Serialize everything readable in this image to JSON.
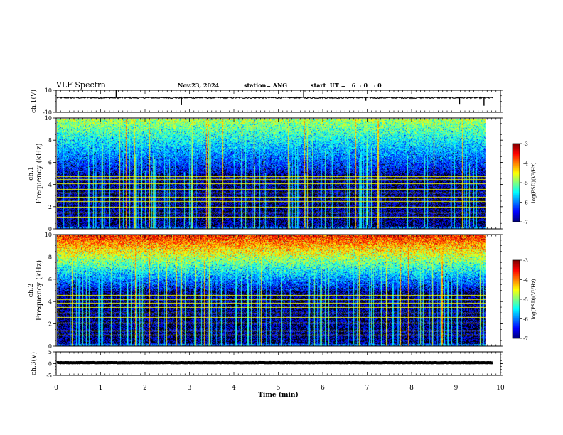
{
  "header": {
    "title": "VLF Spectra",
    "date": "Nov.23, 2024",
    "station": "station= ANG",
    "start_ut": "start  UT =   6  : 0   : 0"
  },
  "chart_data": [
    {
      "type": "line",
      "panel": "ch1-waveform",
      "ylabel": "ch.1(V)",
      "ylim": [
        -10,
        10
      ],
      "y_ticks": [
        "10",
        "-10"
      ],
      "baseline": 3.2,
      "noise_amplitude": 0.6,
      "spikes": [
        {
          "t": 1.35,
          "v": 10
        },
        {
          "t": 2.82,
          "v": -3.5
        },
        {
          "t": 5.57,
          "v": 10
        },
        {
          "t": 6.97,
          "v": 0.5
        },
        {
          "t": 9.08,
          "v": -3
        },
        {
          "t": 9.63,
          "v": -4
        }
      ]
    },
    {
      "type": "heatmap",
      "panel": "ch1-spectrogram",
      "ylabel": "ch.1 Frequency (kHz)",
      "ylim": [
        0,
        10
      ],
      "y_ticks": [
        "0",
        "2",
        "4",
        "6",
        "8",
        "10"
      ],
      "colorbar": {
        "label": "log(PSD)(V²/Hz)",
        "range": [
          -7,
          -3
        ],
        "ticks": [
          "-3",
          "-4",
          "-5",
          "-6",
          "-7"
        ]
      },
      "noise_lines_khz": [
        1.1,
        1.5,
        2.0,
        2.5,
        2.9,
        3.3,
        3.6,
        4.1,
        4.5,
        4.8
      ],
      "upper_band_level": 0.45
    },
    {
      "type": "heatmap",
      "panel": "ch2-spectrogram",
      "ylabel": "ch.2 Frequency (kHz)",
      "ylim": [
        0,
        10
      ],
      "y_ticks": [
        "0",
        "2",
        "4",
        "6",
        "8",
        "10"
      ],
      "colorbar": {
        "label": "log(PSD)(V²/Hz)",
        "range": [
          -7,
          -3
        ],
        "ticks": [
          "-3",
          "-4",
          "-5",
          "-6",
          "-7"
        ]
      },
      "noise_lines_khz": [
        1.0,
        1.4,
        2.1,
        2.6,
        3.0,
        3.5,
        3.9,
        4.2,
        4.6
      ],
      "upper_band_level": 0.75
    },
    {
      "type": "line",
      "panel": "ch3-waveform",
      "ylabel": "ch.3(V)",
      "ylim": [
        -5,
        5
      ],
      "y_ticks": [
        "5",
        "0",
        "-5"
      ],
      "baseline": 0.4,
      "noise_amplitude": 0.08
    }
  ],
  "x_axis": {
    "label": "Time  (min)",
    "range": [
      0,
      10
    ],
    "data_end": 9.83,
    "ticks": [
      "0",
      "1",
      "2",
      "3",
      "4",
      "5",
      "6",
      "7",
      "8",
      "9",
      "10"
    ]
  }
}
